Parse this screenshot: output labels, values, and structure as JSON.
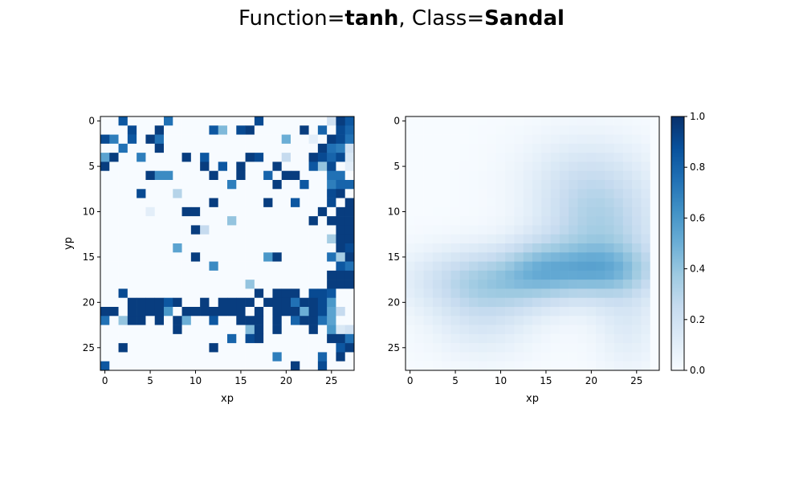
{
  "title": {
    "prefix": "Function=",
    "function": "tanh",
    "mid": ", Class=",
    "class_name": "Sandal"
  },
  "colors": {
    "cmap": [
      "#f7fbff",
      "#deebf7",
      "#c6dbef",
      "#9ecae1",
      "#6baed6",
      "#4292c6",
      "#2171b5",
      "#08519c",
      "#08306b"
    ]
  },
  "chart_data": [
    {
      "type": "heatmap",
      "title": "",
      "xlabel": "xp",
      "ylabel": "yp",
      "xticks": [
        0,
        5,
        10,
        15,
        20,
        25
      ],
      "yticks": [
        0,
        5,
        10,
        15,
        20,
        25
      ],
      "xlim": [
        -0.5,
        27.5
      ],
      "ylim": [
        27.5,
        -0.5
      ],
      "rows": 28,
      "cols": 28,
      "background": 0.0,
      "cells": [
        [
          0,
          2,
          0.85
        ],
        [
          0,
          7,
          0.75
        ],
        [
          0,
          17,
          0.9
        ],
        [
          0,
          25,
          0.2
        ],
        [
          0,
          26,
          0.95
        ],
        [
          0,
          27,
          0.85
        ],
        [
          1,
          3,
          0.9
        ],
        [
          1,
          6,
          0.95
        ],
        [
          1,
          12,
          0.85
        ],
        [
          1,
          13,
          0.45
        ],
        [
          1,
          15,
          0.9
        ],
        [
          1,
          16,
          0.95
        ],
        [
          1,
          22,
          0.95
        ],
        [
          1,
          24,
          0.8
        ],
        [
          1,
          26,
          0.9
        ],
        [
          1,
          27,
          0.8
        ],
        [
          2,
          0,
          0.9
        ],
        [
          2,
          1,
          0.7
        ],
        [
          2,
          3,
          0.85
        ],
        [
          2,
          5,
          0.95
        ],
        [
          2,
          6,
          0.75
        ],
        [
          2,
          20,
          0.5
        ],
        [
          2,
          23,
          0.1
        ],
        [
          2,
          25,
          0.95
        ],
        [
          2,
          26,
          0.9
        ],
        [
          2,
          27,
          0.75
        ],
        [
          3,
          2,
          0.75
        ],
        [
          3,
          6,
          0.95
        ],
        [
          3,
          24,
          0.95
        ],
        [
          3,
          25,
          0.75
        ],
        [
          3,
          26,
          0.7
        ],
        [
          3,
          27,
          0.2
        ],
        [
          4,
          0,
          0.55
        ],
        [
          4,
          1,
          0.95
        ],
        [
          4,
          4,
          0.7
        ],
        [
          4,
          9,
          0.95
        ],
        [
          4,
          11,
          0.85
        ],
        [
          4,
          16,
          0.95
        ],
        [
          4,
          17,
          0.9
        ],
        [
          4,
          20,
          0.25
        ],
        [
          4,
          23,
          0.95
        ],
        [
          4,
          24,
          0.9
        ],
        [
          4,
          25,
          0.8
        ],
        [
          4,
          26,
          0.9
        ],
        [
          4,
          27,
          0.15
        ],
        [
          5,
          0,
          0.95
        ],
        [
          5,
          11,
          0.95
        ],
        [
          5,
          13,
          0.85
        ],
        [
          5,
          15,
          0.95
        ],
        [
          5,
          19,
          0.95
        ],
        [
          5,
          23,
          0.85
        ],
        [
          5,
          24,
          0.4
        ],
        [
          5,
          25,
          0.9
        ],
        [
          5,
          27,
          0.1
        ],
        [
          6,
          5,
          0.95
        ],
        [
          6,
          6,
          0.65
        ],
        [
          6,
          7,
          0.65
        ],
        [
          6,
          12,
          0.95
        ],
        [
          6,
          15,
          0.95
        ],
        [
          6,
          18,
          0.8
        ],
        [
          6,
          20,
          0.95
        ],
        [
          6,
          21,
          0.95
        ],
        [
          6,
          25,
          0.75
        ],
        [
          6,
          26,
          0.75
        ],
        [
          7,
          14,
          0.7
        ],
        [
          7,
          19,
          0.95
        ],
        [
          7,
          22,
          0.85
        ],
        [
          7,
          25,
          0.7
        ],
        [
          7,
          26,
          0.8
        ],
        [
          7,
          27,
          0.8
        ],
        [
          8,
          4,
          0.9
        ],
        [
          8,
          8,
          0.3
        ],
        [
          8,
          25,
          0.9
        ],
        [
          8,
          26,
          0.95
        ],
        [
          9,
          12,
          0.95
        ],
        [
          9,
          18,
          0.95
        ],
        [
          9,
          21,
          0.85
        ],
        [
          9,
          25,
          0.9
        ],
        [
          9,
          27,
          0.95
        ],
        [
          10,
          5,
          0.1
        ],
        [
          10,
          9,
          0.95
        ],
        [
          10,
          10,
          0.95
        ],
        [
          10,
          24,
          0.95
        ],
        [
          10,
          26,
          0.95
        ],
        [
          10,
          27,
          0.95
        ],
        [
          11,
          14,
          0.4
        ],
        [
          11,
          23,
          0.95
        ],
        [
          11,
          25,
          0.95
        ],
        [
          11,
          26,
          0.95
        ],
        [
          11,
          27,
          0.95
        ],
        [
          12,
          10,
          0.95
        ],
        [
          12,
          11,
          0.25
        ],
        [
          12,
          26,
          0.95
        ],
        [
          12,
          27,
          0.95
        ],
        [
          13,
          25,
          0.35
        ],
        [
          13,
          26,
          0.95
        ],
        [
          13,
          27,
          0.95
        ],
        [
          14,
          8,
          0.55
        ],
        [
          14,
          26,
          0.95
        ],
        [
          14,
          27,
          0.9
        ],
        [
          15,
          10,
          0.95
        ],
        [
          15,
          18,
          0.6
        ],
        [
          15,
          19,
          0.95
        ],
        [
          15,
          25,
          0.75
        ],
        [
          15,
          26,
          0.35
        ],
        [
          15,
          27,
          0.95
        ],
        [
          16,
          12,
          0.65
        ],
        [
          16,
          26,
          0.85
        ],
        [
          16,
          27,
          0.75
        ],
        [
          17,
          25,
          0.95
        ],
        [
          17,
          26,
          0.95
        ],
        [
          17,
          27,
          0.95
        ],
        [
          18,
          16,
          0.4
        ],
        [
          18,
          25,
          0.95
        ],
        [
          18,
          26,
          0.95
        ],
        [
          18,
          27,
          0.95
        ],
        [
          19,
          2,
          0.9
        ],
        [
          19,
          17,
          0.95
        ],
        [
          19,
          19,
          0.95
        ],
        [
          19,
          20,
          0.95
        ],
        [
          19,
          21,
          0.95
        ],
        [
          19,
          23,
          0.9
        ],
        [
          19,
          24,
          0.9
        ],
        [
          19,
          25,
          0.85
        ],
        [
          20,
          3,
          0.95
        ],
        [
          20,
          4,
          0.95
        ],
        [
          20,
          5,
          0.95
        ],
        [
          20,
          6,
          0.95
        ],
        [
          20,
          7,
          0.85
        ],
        [
          20,
          8,
          0.95
        ],
        [
          20,
          11,
          0.95
        ],
        [
          20,
          13,
          0.95
        ],
        [
          20,
          14,
          0.95
        ],
        [
          20,
          15,
          0.95
        ],
        [
          20,
          16,
          0.95
        ],
        [
          20,
          18,
          0.95
        ],
        [
          20,
          19,
          0.95
        ],
        [
          20,
          20,
          0.95
        ],
        [
          20,
          21,
          0.75
        ],
        [
          20,
          22,
          0.95
        ],
        [
          20,
          23,
          0.95
        ],
        [
          20,
          24,
          0.9
        ],
        [
          20,
          25,
          0.6
        ],
        [
          21,
          0,
          0.95
        ],
        [
          21,
          1,
          0.95
        ],
        [
          21,
          3,
          0.95
        ],
        [
          21,
          4,
          0.95
        ],
        [
          21,
          5,
          0.95
        ],
        [
          21,
          6,
          0.95
        ],
        [
          21,
          7,
          0.6
        ],
        [
          21,
          9,
          0.95
        ],
        [
          21,
          10,
          0.95
        ],
        [
          21,
          11,
          0.95
        ],
        [
          21,
          12,
          0.95
        ],
        [
          21,
          13,
          0.95
        ],
        [
          21,
          14,
          0.95
        ],
        [
          21,
          15,
          0.95
        ],
        [
          21,
          17,
          0.95
        ],
        [
          21,
          19,
          0.95
        ],
        [
          21,
          20,
          0.95
        ],
        [
          21,
          21,
          0.95
        ],
        [
          21,
          22,
          0.5
        ],
        [
          21,
          23,
          0.95
        ],
        [
          21,
          24,
          0.9
        ],
        [
          21,
          25,
          0.55
        ],
        [
          21,
          26,
          0.25
        ],
        [
          22,
          0,
          0.75
        ],
        [
          22,
          2,
          0.4
        ],
        [
          22,
          3,
          0.95
        ],
        [
          22,
          4,
          0.95
        ],
        [
          22,
          6,
          0.95
        ],
        [
          22,
          8,
          0.95
        ],
        [
          22,
          9,
          0.5
        ],
        [
          22,
          12,
          0.85
        ],
        [
          22,
          15,
          0.95
        ],
        [
          22,
          16,
          0.95
        ],
        [
          22,
          17,
          0.95
        ],
        [
          22,
          19,
          0.95
        ],
        [
          22,
          21,
          0.8
        ],
        [
          22,
          22,
          0.95
        ],
        [
          22,
          23,
          0.95
        ],
        [
          22,
          24,
          0.75
        ],
        [
          22,
          25,
          0.55
        ],
        [
          23,
          8,
          0.95
        ],
        [
          23,
          16,
          0.45
        ],
        [
          23,
          17,
          0.95
        ],
        [
          23,
          19,
          0.95
        ],
        [
          23,
          23,
          0.95
        ],
        [
          23,
          25,
          0.6
        ],
        [
          23,
          26,
          0.15
        ],
        [
          23,
          27,
          0.2
        ],
        [
          24,
          14,
          0.8
        ],
        [
          24,
          16,
          0.9
        ],
        [
          24,
          17,
          0.95
        ],
        [
          24,
          25,
          0.95
        ],
        [
          24,
          26,
          0.95
        ],
        [
          24,
          27,
          0.75
        ],
        [
          25,
          2,
          0.95
        ],
        [
          25,
          12,
          0.95
        ],
        [
          25,
          26,
          0.85
        ],
        [
          25,
          27,
          0.95
        ],
        [
          26,
          19,
          0.7
        ],
        [
          26,
          24,
          0.8
        ],
        [
          26,
          26,
          0.95
        ],
        [
          27,
          0,
          0.85
        ],
        [
          27,
          21,
          0.95
        ],
        [
          27,
          24,
          0.9
        ]
      ]
    },
    {
      "type": "heatmap",
      "title": "",
      "xlabel": "xp",
      "ylabel": "",
      "xticks": [
        0,
        5,
        10,
        15,
        20,
        25
      ],
      "yticks": [
        0,
        5,
        10,
        15,
        20,
        25
      ],
      "xlim": [
        -0.5,
        27.5
      ],
      "ylim": [
        27.5,
        -0.5
      ],
      "rows": 28,
      "cols": 28,
      "blobs": [
        {
          "cx": 21,
          "cy": 12,
          "sx": 4.5,
          "sy": 4.5,
          "amp": 0.3
        },
        {
          "cx": 19,
          "cy": 6,
          "sx": 5,
          "sy": 3.5,
          "amp": 0.12
        },
        {
          "cx": 9,
          "cy": 17.5,
          "sx": 6,
          "sy": 2.5,
          "amp": 0.32
        },
        {
          "cx": 20.5,
          "cy": 16.5,
          "sx": 5,
          "sy": 2,
          "amp": 0.3
        },
        {
          "cx": 14,
          "cy": 16,
          "sx": 2.5,
          "sy": 2.5,
          "amp": 0.12
        },
        {
          "cx": 8,
          "cy": 22,
          "sx": 4,
          "sy": 3,
          "amp": 0.14
        },
        {
          "cx": 24,
          "cy": 22,
          "sx": 2.5,
          "sy": 4,
          "amp": 0.12
        }
      ]
    }
  ],
  "colorbar": {
    "min": 0.0,
    "max": 1.0,
    "ticks": [
      "0.0",
      "0.2",
      "0.4",
      "0.6",
      "0.8",
      "1.0"
    ]
  }
}
